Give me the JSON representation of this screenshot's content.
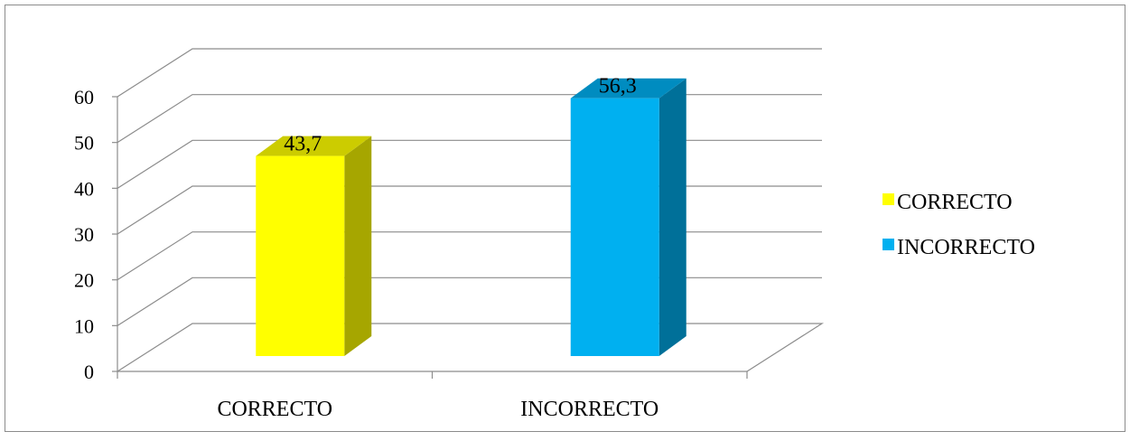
{
  "chart_data": {
    "type": "bar",
    "style": "3d-column",
    "categories": [
      "CORRECTO",
      "INCORRECTO"
    ],
    "series": [
      {
        "name": "CORRECTO",
        "values": [
          43.7,
          null
        ],
        "color": "#FFFF00",
        "side_color": "#A6A600",
        "top_color": "#CCCC00"
      },
      {
        "name": "INCORRECTO",
        "values": [
          null,
          56.3
        ],
        "color": "#00B0F0",
        "side_color": "#007099",
        "top_color": "#008CC0"
      }
    ],
    "data_labels": [
      "43,7",
      "56,3"
    ],
    "y_ticks": [
      "0",
      "10",
      "20",
      "30",
      "40",
      "50",
      "60"
    ],
    "ylim": [
      0,
      60
    ],
    "grid": true,
    "legend_position": "right",
    "title": "",
    "xlabel": "",
    "ylabel": ""
  }
}
